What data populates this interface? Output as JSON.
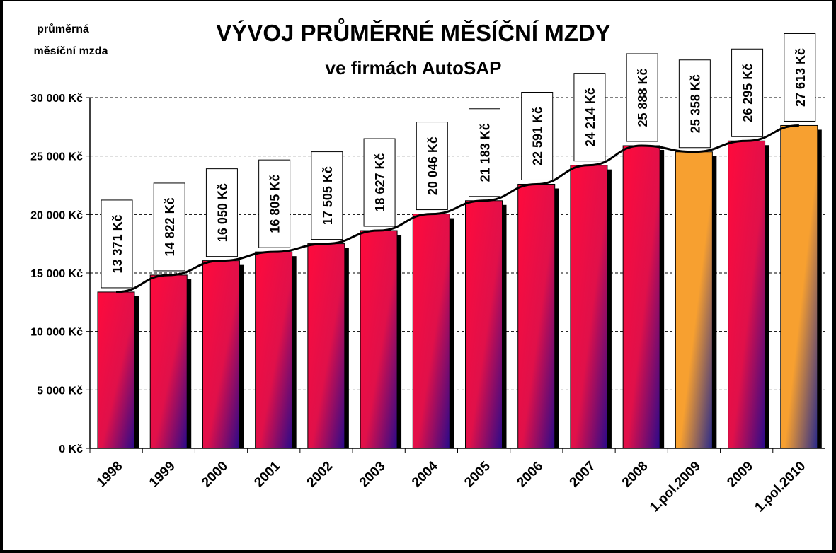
{
  "chart_data": {
    "type": "bar",
    "title": "VÝVOJ PRŮMĚRNÉ MĚSÍČNÍ MZDY",
    "subtitle": "ve firmách AutoSAP",
    "ylabel_lines": [
      "průměrná",
      "měsíční mzda"
    ],
    "xlabel": "",
    "ylim": [
      0,
      30000
    ],
    "ytick_step": 5000,
    "ytick_labels": [
      "0 Kč",
      "5 000 Kč",
      "10 000 Kč",
      "15 000 Kč",
      "20 000 Kč",
      "25 000 Kč",
      "30 000 Kč"
    ],
    "grid": true,
    "trendline": true,
    "categories": [
      "1998",
      "1999",
      "2000",
      "2001",
      "2002",
      "2003",
      "2004",
      "2005",
      "2006",
      "2007",
      "2008",
      "1.pol.2009",
      "2009",
      "1.pol.2010"
    ],
    "values": [
      13371,
      14822,
      16050,
      16805,
      17505,
      18627,
      20046,
      21183,
      22591,
      24214,
      25888,
      25358,
      26295,
      27613
    ],
    "value_labels": [
      "13 371 Kč",
      "14 822 Kč",
      "16 050 Kč",
      "16 805 Kč",
      "17 505 Kč",
      "18 627 Kč",
      "20 046 Kč",
      "21 183 Kč",
      "22 591 Kč",
      "24 214 Kč",
      "25 888 Kč",
      "25 358 Kč",
      "26 295 Kč",
      "27 613 Kč"
    ],
    "bar_kind": [
      "full",
      "full",
      "full",
      "full",
      "full",
      "full",
      "full",
      "full",
      "full",
      "full",
      "full",
      "half",
      "full",
      "half"
    ],
    "colors": {
      "full_top": "#ff0a3c",
      "full_mid": "#e0104a",
      "full_bottom": "#2a0a8a",
      "half_top": "#f7a030",
      "half_bottom": "#2a2a8a",
      "plot_bg": "#ffffff",
      "page_bg": "#ffffff",
      "frame": "#000000"
    }
  }
}
